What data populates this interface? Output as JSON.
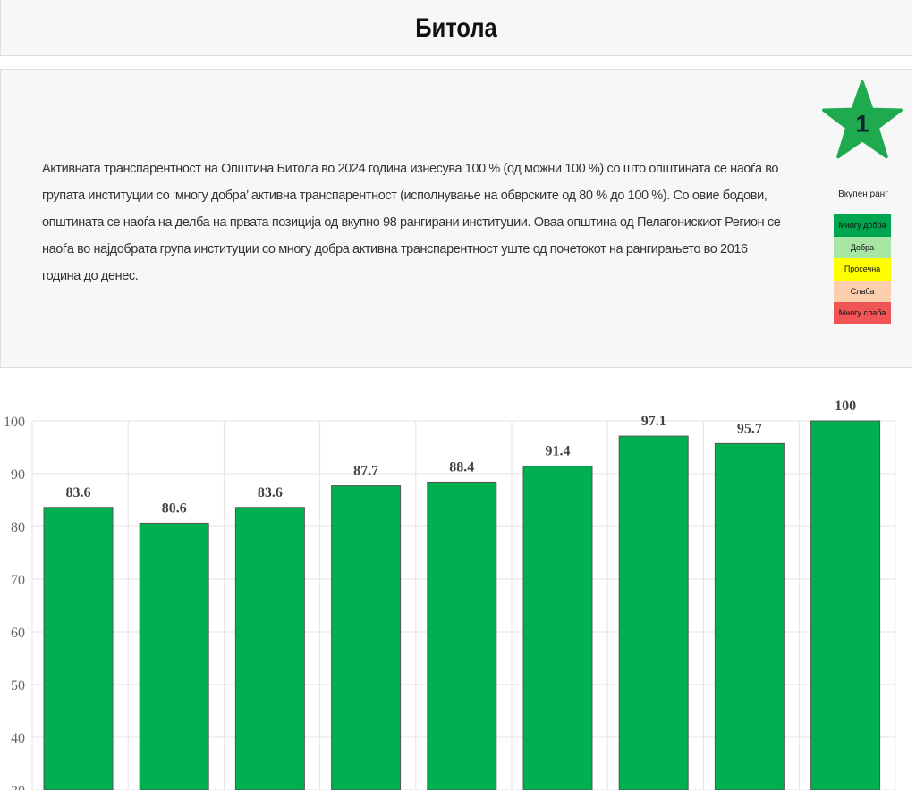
{
  "title": "Битола",
  "description": "Активната транспарентност на Општина Битола во 2024 година изнесува 100 % (од можни 100 %) со што општината се наоѓа во групата институции со ‘многу добра’ активна транспарентност (исполнување на обврските од 80 % до 100 %). Со овие бодови, општината се наоѓа на делба на првата позиција од вкупно 98 рангирани институции. Оваа општина од Пелагонискиот Регион се наоѓа во најдобрата група институции со многу добра активна транспарентност уште од почетокот на рангирањето во 2016 година до денес.",
  "rank": {
    "value": "1",
    "label": "Вкупен ранг",
    "star_color": "#1faa4f"
  },
  "legend": [
    {
      "label": "Многу добра",
      "color": "#00a550"
    },
    {
      "label": "Добра",
      "color": "#a8e6a3"
    },
    {
      "label": "Просечна",
      "color": "#ffff00"
    },
    {
      "label": "Слаба",
      "color": "#fbcfae"
    },
    {
      "label": "Многу слаба",
      "color": "#f05454"
    }
  ],
  "chart_data": {
    "type": "bar",
    "values": [
      83.6,
      80.6,
      83.6,
      87.7,
      88.4,
      91.4,
      97.1,
      95.7,
      100
    ],
    "value_labels": [
      "83.6",
      "80.6",
      "83.6",
      "87.7",
      "88.4",
      "91.4",
      "97.1",
      "95.7",
      "100"
    ],
    "yticks": [
      "30",
      "40",
      "50",
      "60",
      "70",
      "80",
      "90",
      "100"
    ],
    "ylim": [
      30,
      100
    ],
    "bar_color": "#00b050",
    "grid": true
  }
}
